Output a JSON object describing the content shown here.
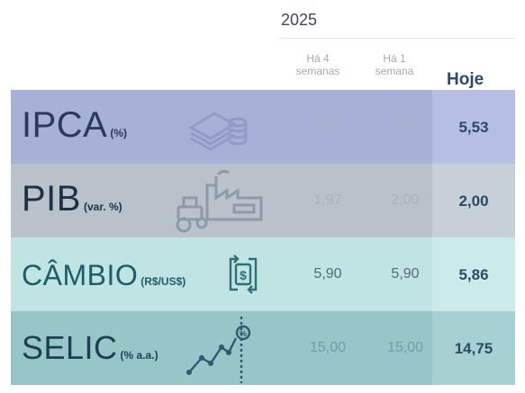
{
  "header": {
    "year": "2025",
    "col_4_weeks": "Há 4\nsemanas",
    "col_4_weeks_l1": "Há 4",
    "col_4_weeks_l2": "semanas",
    "col_1_week_l1": "Há 1",
    "col_1_week_l2": "semana",
    "col_today": "Hoje"
  },
  "rows": [
    {
      "name": "IPCA",
      "unit": "(%)",
      "weeks4": "5,65",
      "week1": "5,55",
      "today": "5,53",
      "color_main": "#a7b0d6",
      "color_today": "#b6bfe3",
      "label_color": "#2b3a5c",
      "icon": "money-stack-icon"
    },
    {
      "name": "PIB",
      "unit": "(var. %)",
      "weeks4": "1,97",
      "week1": "2,00",
      "today": "2,00",
      "color_main": "#b9c2cb",
      "color_today": "#c7cfd7",
      "label_color": "#1f3044",
      "icon": "tractor-factory-icon"
    },
    {
      "name": "CÂMBIO",
      "unit": "(R$/US$)",
      "weeks4": "5,90",
      "week1": "5,90",
      "today": "5,86",
      "color_main": "#bfe4e3",
      "color_today": "#cbeaea",
      "label_color": "#1d5c6a",
      "icon": "currency-exchange-icon"
    },
    {
      "name": "SELIC",
      "unit": "(% a.a.)",
      "weeks4": "15,00",
      "week1": "15,00",
      "today": "14,75",
      "color_main": "#96c6c8",
      "color_today": "#a7d0d2",
      "label_color": "#1f3e54",
      "icon": "rate-chart-icon"
    }
  ]
}
